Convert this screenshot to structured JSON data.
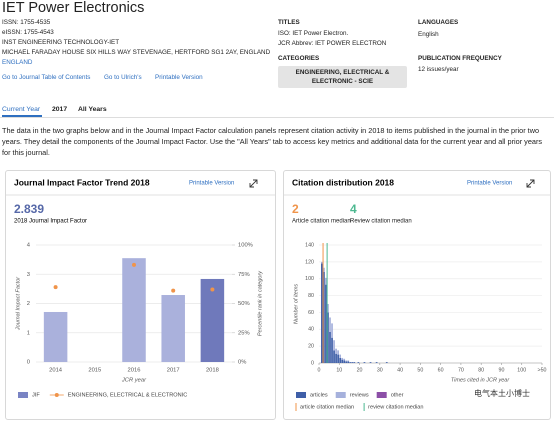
{
  "header": {
    "title": "IET Power Electronics",
    "issn": "ISSN: 1755-4535",
    "eissn": "eISSN: 1755-4543",
    "publisher": "INST ENGINEERING TECHNOLOGY-IET",
    "address": "MICHAEL FARADAY HOUSE SIX HILLS WAY STEVENAGE, HERTFORD SG1 2AY, ENGLAND",
    "country": "ENGLAND",
    "links": [
      "Go to Journal Table of Contents",
      "Go to Ulrich's",
      "Printable Version"
    ]
  },
  "info": {
    "titles_heading": "TITLES",
    "titles": [
      "ISO: IET Power Electron.",
      "JCR Abbrev: IET POWER ELECTRON"
    ],
    "categories_heading": "CATEGORIES",
    "category": "ENGINEERING, ELECTRICAL & ELECTRONIC - SCIE",
    "languages_heading": "LANGUAGES",
    "language": "English",
    "frequency_heading": "PUBLICATION FREQUENCY",
    "frequency": "12 issues/year"
  },
  "tabs": [
    "Current Year",
    "2017",
    "All Years"
  ],
  "description": "The data in the two graphs below and in the Journal Impact Factor calculation panels represent citation activity in 2018 to items published in the journal in the prior two years. They detail the components of the Journal Impact Factor. Use the \"All Years\" tab to access key metrics and additional data for the current year and all prior years for this journal.",
  "panels": [
    {
      "title": "Journal Impact Factor Trend 2018",
      "link": "Printable Version",
      "metric_label": "2018 Journal Impact Factor"
    },
    {
      "title": "Citation distribution 2018",
      "link": "Printable Version"
    }
  ],
  "watermark": "电气本土小博士",
  "chart_data": [
    {
      "type": "bar",
      "categories": [
        "2014",
        "2015",
        "2016",
        "2017",
        "2018"
      ],
      "series": [
        {
          "name": "JIF",
          "color": "#7a84c4",
          "colors": [
            "#aab1dc",
            "#aab1dc",
            "#aab1dc",
            "#aab1dc",
            "#6f79bb"
          ],
          "values": [
            1.71,
            null,
            3.55,
            2.29,
            2.839
          ]
        },
        {
          "name": "ENGINEERING, ELECTRICAL & ELECTRONIC",
          "color": "#f0944a",
          "axis": "y2",
          "values": [
            64,
            null,
            83,
            61,
            62
          ]
        }
      ],
      "xlabel": "JCR year",
      "ylabel": "Journal Impact Factor",
      "y2label": "Percentile rank in category",
      "ylim": [
        0,
        4
      ],
      "yticks": [
        0,
        1,
        2,
        3,
        4
      ],
      "y2lim": [
        0,
        100
      ],
      "y2ticks": [
        {
          "value": 0,
          "label": "0%"
        },
        {
          "value": 25,
          "label": "25%"
        },
        {
          "value": 50,
          "label": "50%"
        },
        {
          "value": 75,
          "label": "75%"
        },
        {
          "value": 100,
          "label": "100%"
        }
      ],
      "grid": true
    },
    {
      "type": "histogram",
      "x": [
        1,
        2,
        3,
        4,
        5,
        6,
        7,
        8,
        9,
        10,
        11,
        12,
        13,
        14,
        15,
        16,
        17,
        18,
        19,
        22,
        25,
        28,
        33
      ],
      "series": [
        {
          "name": "articles",
          "color": "#3f5fa8",
          "values": [
            118,
            108,
            93,
            60,
            37,
            30,
            15,
            11,
            10,
            6,
            4,
            3,
            2,
            2,
            1,
            1,
            1,
            0,
            1,
            1,
            1,
            1,
            1
          ]
        },
        {
          "name": "reviews",
          "color": "#a6b1dc",
          "values": [
            2,
            5,
            8,
            10,
            17,
            17,
            12,
            6,
            5,
            4,
            2,
            2,
            1,
            1,
            0,
            0,
            0,
            0,
            0,
            0,
            0,
            0,
            0
          ]
        },
        {
          "name": "other",
          "color": "#8c4fa7"
        }
      ],
      "medians": [
        {
          "name": "article citation median",
          "label": "Article citation median",
          "value": 2,
          "color": "#f0944a"
        },
        {
          "name": "review citation median",
          "label": "Review citation median",
          "value": 4,
          "color": "#4cb890"
        }
      ],
      "xlabel": "Times cited in JCR year",
      "ylabel": "Number of items",
      "xlim": [
        0,
        110
      ],
      "xticks": [
        0,
        10,
        20,
        30,
        40,
        50,
        60,
        70,
        80,
        90,
        100,
        {
          "value": 110,
          "label": ">50"
        }
      ],
      "ylim": [
        0,
        140
      ],
      "yticks": [
        0,
        20,
        40,
        60,
        80,
        100,
        120,
        140
      ],
      "grid": true
    }
  ]
}
